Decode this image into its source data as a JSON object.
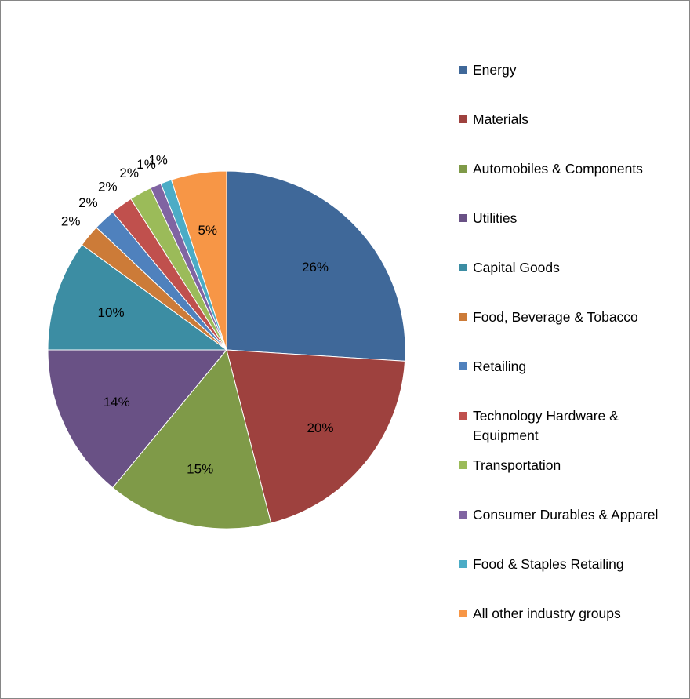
{
  "chart_data": {
    "type": "pie",
    "title": "",
    "start_angle": "top, clockwise",
    "legend_position": "right",
    "slices": [
      {
        "label": "Energy",
        "value": 26,
        "data_label": "26%",
        "color": "#3F6899"
      },
      {
        "label": "Materials",
        "value": 20,
        "data_label": "20%",
        "color": "#9E413E"
      },
      {
        "label": "Automobiles & Components",
        "value": 15,
        "data_label": "15%",
        "color": "#7F9A48"
      },
      {
        "label": "Utilities",
        "value": 14,
        "data_label": "14%",
        "color": "#695185"
      },
      {
        "label": "Capital Goods",
        "value": 10,
        "data_label": "10%",
        "color": "#3C8DA3"
      },
      {
        "label": "Food, Beverage & Tobacco",
        "value": 2,
        "data_label": "2%",
        "color": "#CC7B38"
      },
      {
        "label": "Retailing",
        "value": 2,
        "data_label": "2%",
        "color": "#4F81BD"
      },
      {
        "label": "Technology Hardware & Equipment",
        "value": 2,
        "data_label": "2%",
        "color": "#C0504D"
      },
      {
        "label": "Transportation",
        "value": 2,
        "data_label": "2%",
        "color": "#9BBB59"
      },
      {
        "label": "Consumer Durables & Apparel",
        "value": 1,
        "data_label": "1%",
        "color": "#8064A2"
      },
      {
        "label": "Food & Staples Retailing",
        "value": 1,
        "data_label": "1%",
        "color": "#4BACC6"
      },
      {
        "label": "All other industry groups",
        "value": 5,
        "data_label": "5%",
        "color": "#F79646"
      }
    ]
  }
}
